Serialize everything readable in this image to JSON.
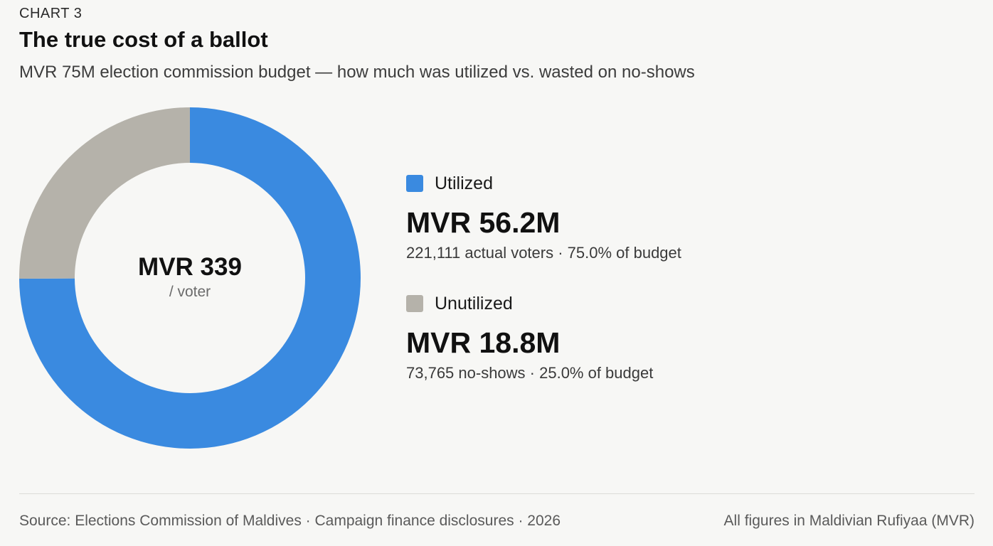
{
  "header": {
    "eyebrow": "CHART 3",
    "title": "The true cost of a ballot",
    "subtitle": "MVR 75M election commission budget — how much was utilized vs. wasted on no-shows"
  },
  "center": {
    "value": "MVR 339",
    "unit": "/ voter"
  },
  "legend": [
    {
      "name": "Utilized",
      "value": "MVR 56.2M",
      "detail": "221,111 actual voters · 75.0% of budget",
      "color": "#3a8ae0"
    },
    {
      "name": "Unutilized",
      "value": "MVR 18.8M",
      "detail": "73,765 no-shows · 25.0% of budget",
      "color": "#b5b2aa"
    }
  ],
  "footer": {
    "source": "Source: Elections Commission of Maldives · Campaign finance disclosures · 2026",
    "note": "All figures in Maldivian Rufiyaa (MVR)"
  },
  "chart_data": {
    "type": "pie",
    "variant": "donut",
    "title": "The true cost of a ballot",
    "categories": [
      "Utilized",
      "Unutilized"
    ],
    "values": [
      56.2,
      18.8
    ],
    "units": "MVR million",
    "percent": [
      75.0,
      25.0
    ],
    "colors": [
      "#3a8ae0",
      "#b5b2aa"
    ],
    "center_label": "MVR 339 / voter"
  }
}
